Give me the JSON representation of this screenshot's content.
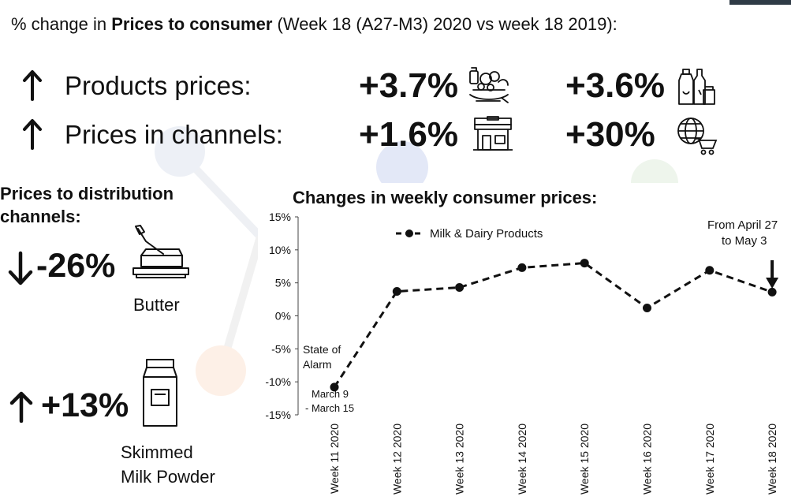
{
  "header": {
    "prefix": "% change in ",
    "bold": "Prices to consumer",
    "suffix": " (Week 18 (A27-M3) 2020 vs week 18 2019):"
  },
  "kpis": [
    {
      "direction": "up",
      "label": "Products prices:",
      "value_1": "+3.7%",
      "icon_1": "groceries-icon",
      "value_2": "+3.6%",
      "icon_2": "dairy-bottles-icon"
    },
    {
      "direction": "up",
      "label": "Prices in channels:",
      "value_1": "+1.6%",
      "icon_1": "store-icon",
      "value_2": "+30%",
      "icon_2": "online-shopping-cart-icon"
    }
  ],
  "distribution": {
    "title_line1": "Prices to distribution",
    "title_line2": "channels:",
    "items": [
      {
        "direction": "down",
        "value": "-26%",
        "label_line1": "Butter",
        "label_line2": "",
        "icon": "butter-dish-icon"
      },
      {
        "direction": "up",
        "value": "+13%",
        "label_line1": "Skimmed",
        "label_line2": "Milk Powder",
        "icon": "milk-carton-icon"
      }
    ]
  },
  "chart_data": {
    "type": "line",
    "title": "Changes in weekly consumer prices:",
    "categories": [
      "Week 11 2020",
      "Week 12 2020",
      "Week 13 2020",
      "Week 14 2020",
      "Week 15 2020",
      "Week 16 2020",
      "Week 17 2020",
      "Week 18 2020"
    ],
    "series": [
      {
        "name": "Milk & Dairy Products",
        "values": [
          -10.8,
          3.7,
          4.3,
          7.3,
          8.0,
          1.2,
          6.9,
          3.6
        ],
        "color": "#111111",
        "style": "dashed",
        "marker": "circle"
      }
    ],
    "yticks": [
      "15%",
      "10%",
      "5%",
      "0%",
      "-5%",
      "-10%",
      "-15%"
    ],
    "ylim": [
      -15,
      15
    ],
    "grid": false,
    "legend_position": "top",
    "annotations": [
      {
        "text_lines": [
          "State of",
          "Alarm"
        ],
        "point": 0
      },
      {
        "text_lines": [
          "March 9",
          "- March 15"
        ],
        "point": 0
      },
      {
        "text_lines": [
          "From April 27",
          "to May 3"
        ],
        "point": 7,
        "arrow": "down"
      }
    ]
  }
}
